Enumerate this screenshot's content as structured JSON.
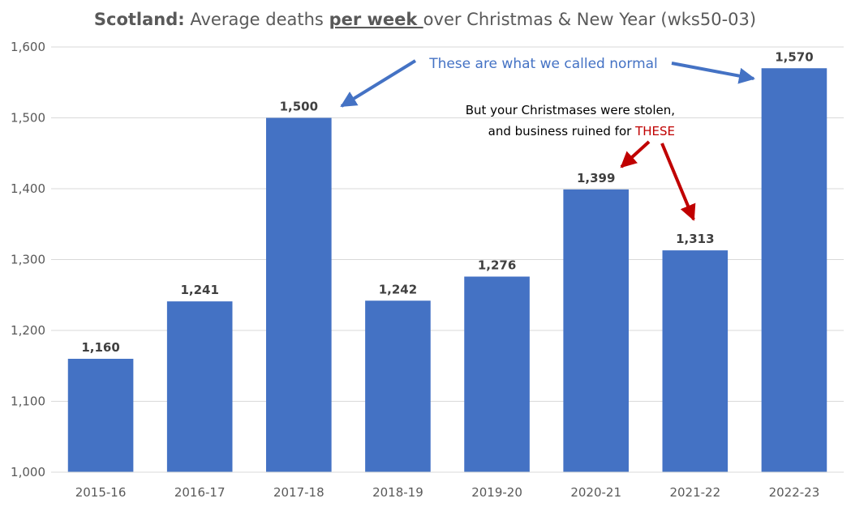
{
  "chart_data": {
    "type": "bar",
    "title_parts": {
      "region": "Scotland:",
      "prefix": " Average deaths ",
      "emphasis": "per week ",
      "suffix": "over Christmas & New Year (wks50-03)"
    },
    "categories": [
      "2015-16",
      "2016-17",
      "2017-18",
      "2018-19",
      "2019-20",
      "2020-21",
      "2021-22",
      "2022-23"
    ],
    "values": [
      1160,
      1241,
      1500,
      1242,
      1276,
      1399,
      1313,
      1570
    ],
    "data_labels": [
      "1,160",
      "1,241",
      "1,500",
      "1,242",
      "1,276",
      "1,399",
      "1,313",
      "1,570"
    ],
    "y_ticks": [
      1000,
      1100,
      1200,
      1300,
      1400,
      1500,
      1600
    ],
    "y_tick_labels": [
      "1,000",
      "1,100",
      "1,200",
      "1,300",
      "1,400",
      "1,500",
      "1,600"
    ],
    "ylim": [
      1000,
      1600
    ],
    "xlabel": "",
    "ylabel": "",
    "grid": true,
    "annotations": {
      "normal_note": "These are what we called normal",
      "stolen_line1": "But your Christmases were stolen,",
      "stolen_line2_prefix": "and business ruined for ",
      "stolen_line2_highlight": "THESE"
    },
    "colors": {
      "bar": "#4472C4",
      "grid": "#D9D9D9",
      "arrow_blue": "#4472C4",
      "arrow_red": "#C00000"
    }
  }
}
